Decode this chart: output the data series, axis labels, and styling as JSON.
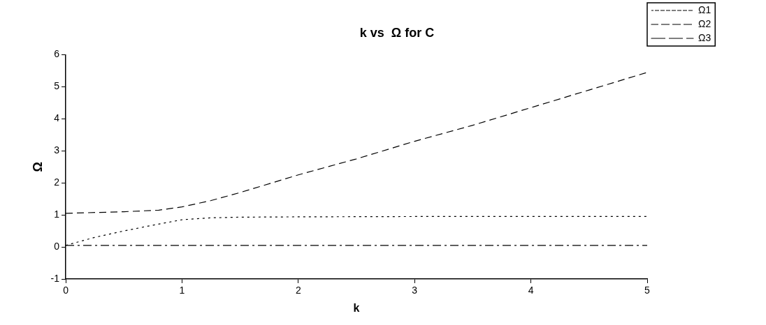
{
  "chart_data": {
    "type": "line",
    "title": "k vs  Ω for C",
    "xlabel": "k",
    "ylabel": "Ω",
    "xlim": [
      0,
      5
    ],
    "xticks": [
      0,
      1,
      2,
      3,
      4,
      5
    ],
    "ylim": [
      -1,
      6
    ],
    "yticks": [
      -1,
      0,
      1,
      2,
      3,
      4,
      5,
      6
    ],
    "grid": false,
    "legend": "top right",
    "marker": "none",
    "series": [
      {
        "name": "Ω1",
        "color": "#000000",
        "line_style": "dotted",
        "x": [
          0,
          0.25,
          0.5,
          0.75,
          1,
          1.25,
          1.5,
          2,
          3,
          4,
          5
        ],
        "values": [
          0.05,
          0.3,
          0.5,
          0.68,
          0.85,
          0.91,
          0.93,
          0.94,
          0.95,
          0.95,
          0.95
        ]
      },
      {
        "name": "Ω2",
        "color": "#000000",
        "line_style": "dashed",
        "x": [
          0,
          0.5,
          0.8,
          1,
          1.25,
          1.5,
          2,
          2.5,
          3,
          3.5,
          4,
          4.5,
          5
        ],
        "values": [
          1.05,
          1.1,
          1.15,
          1.25,
          1.45,
          1.7,
          2.25,
          2.75,
          3.3,
          3.8,
          4.35,
          4.9,
          5.45
        ]
      },
      {
        "name": "Ω3",
        "color": "#000000",
        "line_style": "dashdot",
        "x": [
          0,
          5
        ],
        "values": [
          0.05,
          0.05
        ]
      }
    ]
  }
}
